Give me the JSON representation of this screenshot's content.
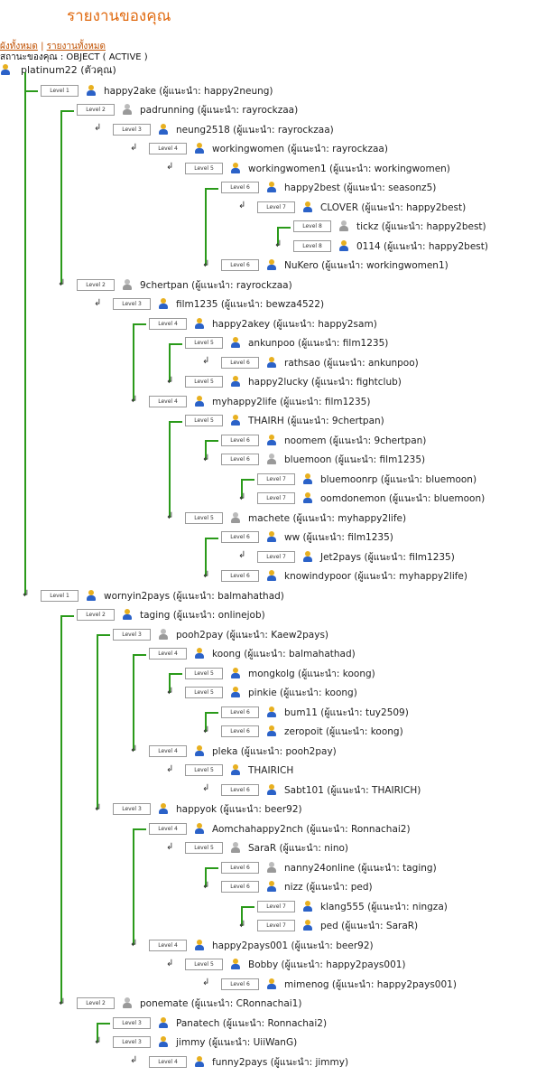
{
  "header": {
    "title": "รายงานของคุณ",
    "link_tree": "ผังทั้งหมด",
    "separator": "|",
    "link_report": "รายงานทั้งหมด",
    "status": "สถานะของคุณ : OBJECT ( ACTIVE )"
  },
  "root": {
    "name": "platinum22 (ตัวคุณ)"
  },
  "level_prefix": "Level ",
  "sponsor_prefix": "ผู้แนะนำ: ",
  "colors": {
    "line": "#2a9a1a",
    "title": "#e06a10"
  },
  "rows": [
    {
      "name": "happy2ake",
      "sponsor": "happy2neung",
      "depth": 1,
      "active": true
    },
    {
      "name": "padrunning",
      "sponsor": "rayrockzaa",
      "depth": 2,
      "active": false
    },
    {
      "name": "neung2518",
      "sponsor": "rayrockzaa",
      "depth": 3,
      "active": true
    },
    {
      "name": "workingwomen",
      "sponsor": "rayrockzaa",
      "depth": 4,
      "active": true
    },
    {
      "name": "workingwomen1",
      "sponsor": "workingwomen",
      "depth": 5,
      "active": true
    },
    {
      "name": "happy2best",
      "sponsor": "seasonz5",
      "depth": 6,
      "active": true
    },
    {
      "name": "CLOVER",
      "sponsor": "happy2best",
      "depth": 7,
      "active": true
    },
    {
      "name": "tickz",
      "sponsor": "happy2best",
      "depth": 8,
      "active": false
    },
    {
      "name": "0114",
      "sponsor": "happy2best",
      "depth": 8,
      "active": true
    },
    {
      "name": "NuKero",
      "sponsor": "workingwomen1",
      "depth": 6,
      "active": true
    },
    {
      "name": "9chertpan",
      "sponsor": "rayrockzaa",
      "depth": 2,
      "active": false
    },
    {
      "name": "film1235",
      "sponsor": "bewza4522",
      "depth": 3,
      "active": true
    },
    {
      "name": "happy2akey",
      "sponsor": "happy2sam",
      "depth": 4,
      "active": true
    },
    {
      "name": "ankunpoo",
      "sponsor": "film1235",
      "depth": 5,
      "active": true
    },
    {
      "name": "rathsao",
      "sponsor": "ankunpoo",
      "depth": 6,
      "active": true
    },
    {
      "name": "happy2lucky",
      "sponsor": "fightclub",
      "depth": 5,
      "active": true
    },
    {
      "name": "myhappy2life",
      "sponsor": "film1235",
      "depth": 4,
      "active": true
    },
    {
      "name": "THAIRH",
      "sponsor": "9chertpan",
      "depth": 5,
      "active": true
    },
    {
      "name": "noomem",
      "sponsor": "9chertpan",
      "depth": 6,
      "active": true
    },
    {
      "name": "bluemoon",
      "sponsor": "film1235",
      "depth": 6,
      "active": false
    },
    {
      "name": "bluemoonrp",
      "sponsor": "bluemoon",
      "depth": 7,
      "active": true
    },
    {
      "name": "oomdonemon",
      "sponsor": "bluemoon",
      "depth": 7,
      "active": true
    },
    {
      "name": "machete",
      "sponsor": "myhappy2life",
      "depth": 5,
      "active": false
    },
    {
      "name": "ww",
      "sponsor": "film1235",
      "depth": 6,
      "active": true
    },
    {
      "name": "Jet2pays",
      "sponsor": "film1235",
      "depth": 7,
      "active": true
    },
    {
      "name": "knowindypoor",
      "sponsor": "myhappy2life",
      "depth": 6,
      "active": true
    },
    {
      "name": "wornyin2pays",
      "sponsor": "balmahathad",
      "depth": 1,
      "active": true
    },
    {
      "name": "taging",
      "sponsor": "onlinejob",
      "depth": 2,
      "active": true
    },
    {
      "name": "pooh2pay",
      "sponsor": "Kaew2pays",
      "depth": 3,
      "active": false
    },
    {
      "name": "koong",
      "sponsor": "balmahathad",
      "depth": 4,
      "active": true
    },
    {
      "name": "mongkolg",
      "sponsor": "koong",
      "depth": 5,
      "active": true
    },
    {
      "name": "pinkie",
      "sponsor": "koong",
      "depth": 5,
      "active": true
    },
    {
      "name": "bum11",
      "sponsor": "tuy2509",
      "depth": 6,
      "active": true
    },
    {
      "name": "zeropoit",
      "sponsor": "koong",
      "depth": 6,
      "active": true
    },
    {
      "name": "pleka",
      "sponsor": "pooh2pay",
      "depth": 4,
      "active": true
    },
    {
      "name": "THAIRICH",
      "sponsor": "",
      "depth": 5,
      "active": true
    },
    {
      "name": "Sabt101",
      "sponsor": "THAIRICH",
      "depth": 6,
      "active": true
    },
    {
      "name": "happyok",
      "sponsor": "beer92",
      "depth": 3,
      "active": true
    },
    {
      "name": "Aomchahappy2nch",
      "sponsor": "Ronnachai2",
      "depth": 4,
      "active": true
    },
    {
      "name": "SaraR",
      "sponsor": "nino",
      "depth": 5,
      "active": false
    },
    {
      "name": "nanny24online",
      "sponsor": "taging",
      "depth": 6,
      "active": false
    },
    {
      "name": "nizz",
      "sponsor": "ped",
      "depth": 6,
      "active": true
    },
    {
      "name": "klang555",
      "sponsor": "ningza",
      "depth": 7,
      "active": true
    },
    {
      "name": "ped",
      "sponsor": "SaraR",
      "depth": 7,
      "active": true
    },
    {
      "name": "happy2pays001",
      "sponsor": "beer92",
      "depth": 4,
      "active": true
    },
    {
      "name": "Bobby",
      "sponsor": "happy2pays001",
      "depth": 5,
      "active": true
    },
    {
      "name": "mimenog",
      "sponsor": "happy2pays001",
      "depth": 6,
      "active": true
    },
    {
      "name": "ponemate",
      "sponsor": "CRonnachai1",
      "depth": 2,
      "active": false
    },
    {
      "name": "Panatech",
      "sponsor": "Ronnachai2",
      "depth": 3,
      "active": true
    },
    {
      "name": "jimmy",
      "sponsor": "UiiWanG",
      "depth": 3,
      "active": true
    },
    {
      "name": "funny2pays",
      "sponsor": "jimmy",
      "depth": 4,
      "active": true
    }
  ]
}
